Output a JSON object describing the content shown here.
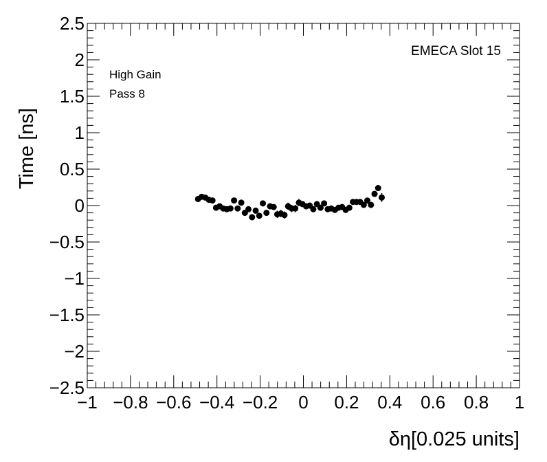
{
  "chart_data": {
    "type": "scatter",
    "xlabel": "δη[0.025 units]",
    "ylabel": "Time [ns]",
    "xlim": [
      -1,
      1
    ],
    "ylim": [
      -2.5,
      2.5
    ],
    "x_ticks": [
      -1,
      -0.8,
      -0.6,
      -0.4,
      -0.2,
      0,
      0.2,
      0.4,
      0.6,
      0.8,
      1
    ],
    "x_tick_labels": [
      "−1",
      "−0.8",
      "−0.6",
      "−0.4",
      "−0.2",
      "0",
      "0.2",
      "0.4",
      "0.6",
      "0.8",
      "1"
    ],
    "y_ticks": [
      -2.5,
      -2,
      -1.5,
      -1,
      -0.5,
      0,
      0.5,
      1,
      1.5,
      2,
      2.5
    ],
    "y_tick_labels": [
      "−2.5",
      "−2",
      "−1.5",
      "−1",
      "−0.5",
      "0",
      "0.5",
      "1",
      "1.5",
      "2",
      "2.5"
    ],
    "annotations": [
      "High Gain",
      "Pass 8"
    ],
    "label_top_right": "EMECA Slot 15",
    "grid": false,
    "marker_color": "#000000",
    "series": [
      {
        "points": [
          {
            "x": -0.4875,
            "y": 0.09,
            "err": 0.03
          },
          {
            "x": -0.4708,
            "y": 0.12,
            "err": 0.03
          },
          {
            "x": -0.4542,
            "y": 0.11,
            "err": 0.03
          },
          {
            "x": -0.4375,
            "y": 0.08,
            "err": 0.03
          },
          {
            "x": -0.4208,
            "y": 0.07,
            "err": 0.03
          },
          {
            "x": -0.4042,
            "y": -0.03,
            "err": 0.03
          },
          {
            "x": -0.3875,
            "y": -0.01,
            "err": 0.03
          },
          {
            "x": -0.3708,
            "y": -0.04,
            "err": 0.03
          },
          {
            "x": -0.3542,
            "y": -0.05,
            "err": 0.03
          },
          {
            "x": -0.3375,
            "y": -0.04,
            "err": 0.03
          },
          {
            "x": -0.3208,
            "y": 0.07,
            "err": 0.03
          },
          {
            "x": -0.3042,
            "y": -0.04,
            "err": 0.03
          },
          {
            "x": -0.2875,
            "y": 0.04,
            "err": 0.03
          },
          {
            "x": -0.2708,
            "y": -0.1,
            "err": 0.04
          },
          {
            "x": -0.2542,
            "y": -0.05,
            "err": 0.04
          },
          {
            "x": -0.2375,
            "y": -0.16,
            "err": 0.04
          },
          {
            "x": -0.2208,
            "y": -0.07,
            "err": 0.04
          },
          {
            "x": -0.2042,
            "y": -0.14,
            "err": 0.04
          },
          {
            "x": -0.1875,
            "y": 0.03,
            "err": 0.04
          },
          {
            "x": -0.1708,
            "y": -0.1,
            "err": 0.04
          },
          {
            "x": -0.1542,
            "y": -0.01,
            "err": 0.04
          },
          {
            "x": -0.1375,
            "y": -0.02,
            "err": 0.04
          },
          {
            "x": -0.1208,
            "y": -0.12,
            "err": 0.05
          },
          {
            "x": -0.1042,
            "y": -0.11,
            "err": 0.05
          },
          {
            "x": -0.0875,
            "y": -0.13,
            "err": 0.05
          },
          {
            "x": -0.0708,
            "y": -0.01,
            "err": 0.05
          },
          {
            "x": -0.0542,
            "y": -0.04,
            "err": 0.05
          },
          {
            "x": -0.0375,
            "y": -0.04,
            "err": 0.05
          },
          {
            "x": -0.0208,
            "y": 0.04,
            "err": 0.05
          },
          {
            "x": -0.0042,
            "y": 0.02,
            "err": 0.04
          },
          {
            "x": 0.0125,
            "y": -0.01,
            "err": 0.04
          },
          {
            "x": 0.0292,
            "y": 0.0,
            "err": 0.04
          },
          {
            "x": 0.0458,
            "y": -0.05,
            "err": 0.04
          },
          {
            "x": 0.0625,
            "y": 0.02,
            "err": 0.04
          },
          {
            "x": 0.0792,
            "y": -0.03,
            "err": 0.04
          },
          {
            "x": 0.0958,
            "y": 0.03,
            "err": 0.04
          },
          {
            "x": 0.1125,
            "y": -0.05,
            "err": 0.04
          },
          {
            "x": 0.1292,
            "y": -0.04,
            "err": 0.03
          },
          {
            "x": 0.1458,
            "y": -0.06,
            "err": 0.03
          },
          {
            "x": 0.1625,
            "y": -0.03,
            "err": 0.03
          },
          {
            "x": 0.1792,
            "y": -0.02,
            "err": 0.03
          },
          {
            "x": 0.1958,
            "y": -0.06,
            "err": 0.03
          },
          {
            "x": 0.2125,
            "y": -0.03,
            "err": 0.03
          },
          {
            "x": 0.2292,
            "y": 0.05,
            "err": 0.03
          },
          {
            "x": 0.2458,
            "y": 0.05,
            "err": 0.03
          },
          {
            "x": 0.2625,
            "y": 0.05,
            "err": 0.03
          },
          {
            "x": 0.2792,
            "y": 0.01,
            "err": 0.03
          },
          {
            "x": 0.2958,
            "y": 0.07,
            "err": 0.03
          },
          {
            "x": 0.3125,
            "y": 0.01,
            "err": 0.03
          },
          {
            "x": 0.3292,
            "y": 0.16,
            "err": 0.03
          },
          {
            "x": 0.3458,
            "y": 0.24,
            "err": 0.03
          },
          {
            "x": 0.3625,
            "y": 0.11,
            "err": 0.06
          }
        ]
      }
    ]
  }
}
